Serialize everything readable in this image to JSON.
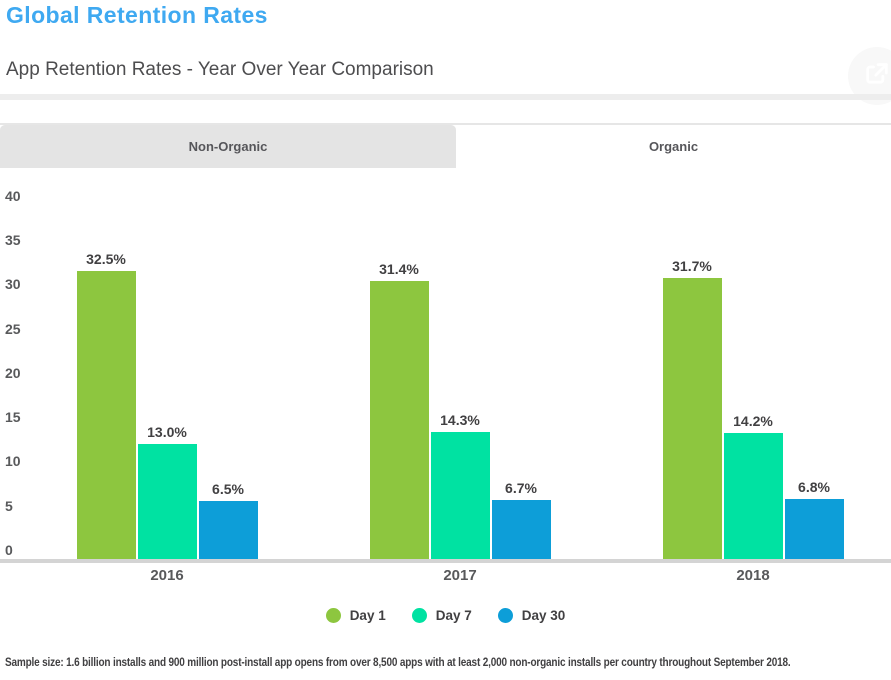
{
  "page": {
    "title": "Global Retention Rates",
    "subtitle": "App Retention Rates - Year Over Year Comparison",
    "footer": "Sample size: 1.6 billion installs and 900 million post-install app opens from over 8,500 apps with at least 2,000 non-organic installs per country throughout September 2018."
  },
  "header": {
    "share_icon": "share-export-arrow"
  },
  "tabs": [
    {
      "label": "Non-Organic",
      "active": true
    },
    {
      "label": "Organic",
      "active": false
    }
  ],
  "colors": {
    "title": "#3fa9f1",
    "tab_active_bg": "#e4e4e4",
    "axis_text": "#58595b",
    "label_text": "#414042",
    "baseline": "#d4d4d4",
    "day1": "#8dc63f",
    "day7": "#00e2a2",
    "day30": "#0d9ed8"
  },
  "chart_data": {
    "type": "bar",
    "title": "App Retention Rates - Year Over Year Comparison",
    "categories": [
      "2016",
      "2017",
      "2018"
    ],
    "series": [
      {
        "name": "Day 1",
        "color": "#8dc63f",
        "values": [
          32.5,
          31.4,
          31.7
        ],
        "labels": [
          "32.5%",
          "31.4%",
          "31.7%"
        ]
      },
      {
        "name": "Day 7",
        "color": "#00e2a2",
        "values": [
          13.0,
          14.3,
          14.2
        ],
        "labels": [
          "13.0%",
          "14.3%",
          "14.2%"
        ]
      },
      {
        "name": "Day 30",
        "color": "#0d9ed8",
        "values": [
          6.5,
          6.7,
          6.8
        ],
        "labels": [
          "6.5%",
          "6.7%",
          "6.8%"
        ]
      }
    ],
    "yticks": [
      0,
      5,
      10,
      15,
      20,
      25,
      30,
      35,
      40
    ],
    "ylim": [
      0,
      40
    ],
    "grid": false,
    "legend_position": "bottom",
    "value_suffix": "%"
  }
}
